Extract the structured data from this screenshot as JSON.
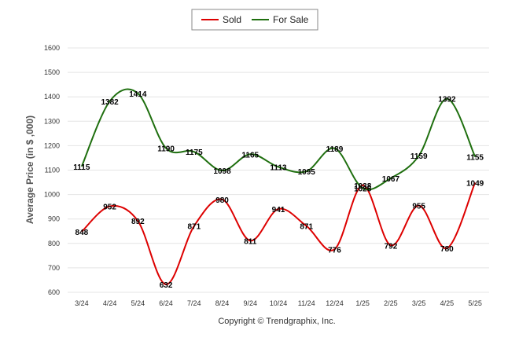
{
  "chart_data": {
    "type": "line",
    "categories": [
      "3/24",
      "4/24",
      "5/24",
      "6/24",
      "7/24",
      "8/24",
      "9/24",
      "10/24",
      "11/24",
      "12/24",
      "1/25",
      "2/25",
      "3/25",
      "4/25",
      "5/25"
    ],
    "series": [
      {
        "name": "Sold",
        "color": "#dd0000",
        "values": [
          848,
          952,
          892,
          632,
          871,
          980,
          811,
          941,
          871,
          776,
          1038,
          792,
          955,
          780,
          1049
        ]
      },
      {
        "name": "For Sale",
        "color": "#1f6f0f",
        "values": [
          1115,
          1382,
          1414,
          1190,
          1175,
          1098,
          1165,
          1113,
          1095,
          1189,
          1026,
          1067,
          1159,
          1392,
          1155
        ]
      }
    ],
    "ylabel": "Average Price (in $ ,000)",
    "ylim": [
      600,
      1600
    ],
    "yticks": [
      600,
      700,
      800,
      900,
      1000,
      1100,
      1200,
      1300,
      1400,
      1500,
      1600
    ],
    "grid": true,
    "legend_position": "top-center"
  },
  "footer": {
    "copyright": "Copyright © Trendgraphix, Inc."
  }
}
